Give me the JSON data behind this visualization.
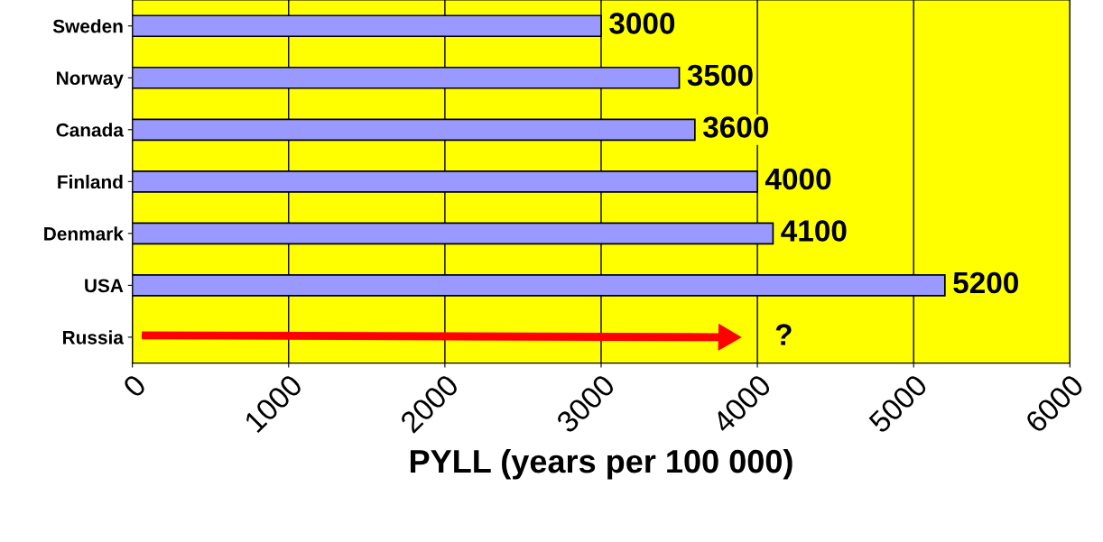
{
  "chart_data": {
    "type": "bar",
    "orientation": "horizontal",
    "xlabel": "PYLL (years per 100 000)",
    "categories": [
      "Sweden",
      "Norway",
      "Canada",
      "Finland",
      "Denmark",
      "USA",
      "Russia"
    ],
    "values": [
      3000,
      3500,
      3600,
      4000,
      4100,
      5200,
      null
    ],
    "color": "#9999ff",
    "xlim": [
      0,
      6000
    ],
    "xticks": [
      0,
      1000,
      2000,
      3000,
      4000,
      5000,
      6000
    ],
    "grid": "x",
    "data_labels": true,
    "annotations": [
      "?"
    ]
  }
}
